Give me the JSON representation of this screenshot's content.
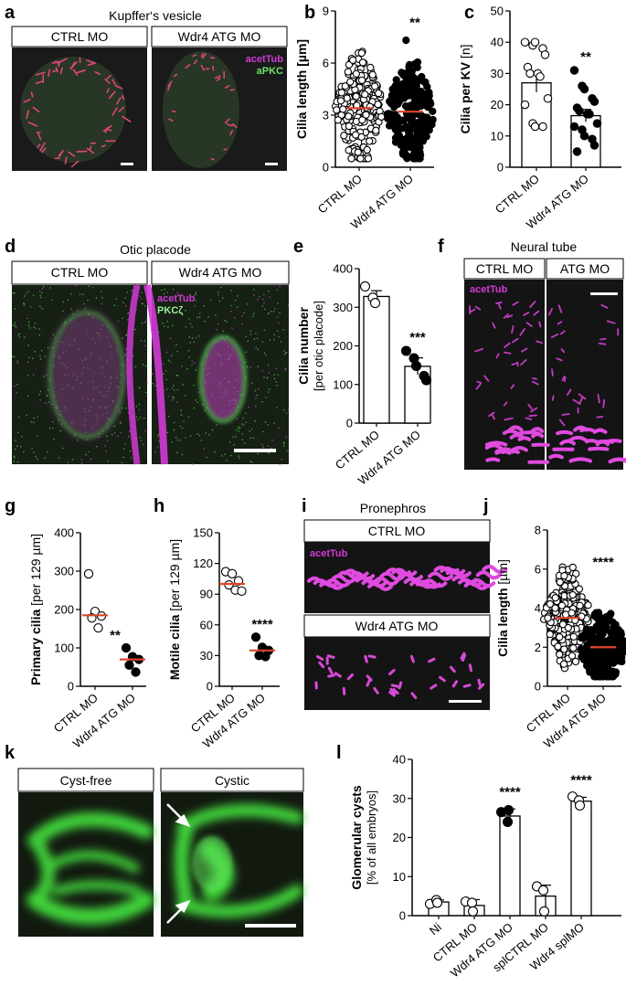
{
  "figure": {
    "panels": {
      "a": {
        "letter": "a",
        "title": "Kupffer‘s vesicle",
        "left_header": "CTRL MO",
        "right_header": "Wdr4 ATG MO",
        "stain1": "acetTub",
        "stain2": "aPKC"
      },
      "d": {
        "letter": "d",
        "title": "Otic placode",
        "left_header": "CTRL MO",
        "right_header": "Wdr4 ATG MO",
        "stain1": "acetTub",
        "stain2": "PKCζ"
      },
      "f": {
        "letter": "f",
        "title": "Neural tube",
        "left_header": "CTRL MO",
        "right_header": "ATG MO",
        "stain1": "acetTub"
      },
      "i": {
        "letter": "i",
        "title": "Pronephros",
        "top_header": "CTRL MO",
        "bottom_header": "Wdr4 ATG MO",
        "stain1": "acetTub"
      },
      "k": {
        "letter": "k",
        "left_header": "Cyst-free",
        "right_header": "Cystic"
      }
    },
    "colors": {
      "magenta": "#d23ad6",
      "green": "#3fd23a",
      "red_median": "#e0442c",
      "micrograph_bg": "#141414"
    }
  },
  "chart_data": [
    {
      "id": "b",
      "letter": "b",
      "type": "scatter",
      "ylabel": "Cilia length [µm]",
      "yunit": "",
      "ylim": [
        0,
        9
      ],
      "yticks": [
        0,
        3,
        6,
        9
      ],
      "categories": [
        "CTRL MO",
        "Wdr4 ATG MO"
      ],
      "median": [
        3.4,
        3.2
      ],
      "significance": "**",
      "series": [
        {
          "fill": [
            "open",
            "filled"
          ]
        }
      ]
    },
    {
      "id": "c",
      "letter": "c",
      "type": "bar",
      "ylabel": "Cilia per KV",
      "yunit": "[n]",
      "ylim": [
        0,
        50
      ],
      "yticks": [
        0,
        10,
        20,
        30,
        40,
        50
      ],
      "categories": [
        "CTRL MO",
        "Wdr4 ATG MO"
      ],
      "values": [
        27,
        16.5
      ],
      "error": [
        3,
        2
      ],
      "significance": "**",
      "points": [
        [
          40,
          39,
          40,
          38,
          36,
          32,
          30,
          30,
          29,
          22,
          20,
          14,
          13,
          13
        ],
        [
          31,
          26,
          25,
          22,
          21,
          19,
          18,
          17,
          17,
          14,
          13,
          12,
          10,
          9,
          7,
          5
        ]
      ]
    },
    {
      "id": "e",
      "letter": "e",
      "type": "bar",
      "ylabel": "Cilia number",
      "yunit": "[per otic placode]",
      "ylim": [
        0,
        400
      ],
      "yticks": [
        0,
        100,
        200,
        300,
        400
      ],
      "categories": [
        "CTRL MO",
        "Wdr4 ATG MO"
      ],
      "values": [
        328,
        147
      ],
      "error": [
        15,
        22
      ],
      "significance": "***",
      "points": [
        [
          354,
          325,
          311
        ],
        [
          187,
          168,
          148,
          122,
          111
        ]
      ]
    },
    {
      "id": "g",
      "letter": "g",
      "type": "scatter",
      "ylabel": "Primary cilia",
      "yunit": "[per 129 µm]",
      "ylim": [
        0,
        400
      ],
      "yticks": [
        0,
        100,
        200,
        300,
        400
      ],
      "categories": [
        "CTRL MO",
        "Wdr4 ATG MO"
      ],
      "median": [
        185,
        70
      ],
      "significance": "**",
      "points": [
        [
          293,
          195,
          183,
          178,
          152
        ],
        [
          100,
          77,
          70,
          55,
          37
        ]
      ]
    },
    {
      "id": "h",
      "letter": "h",
      "type": "scatter",
      "ylabel": "Motile cilia",
      "yunit": "[per 129 µm]",
      "ylim": [
        0,
        150
      ],
      "yticks": [
        0,
        30,
        60,
        90,
        120,
        150
      ],
      "categories": [
        "CTRL MO",
        "Wdr4 ATG MO"
      ],
      "median": [
        100,
        35
      ],
      "significance": "****",
      "points": [
        [
          112,
          110,
          103,
          99,
          94,
          93
        ],
        [
          48,
          38,
          35,
          30,
          29
        ]
      ]
    },
    {
      "id": "j",
      "letter": "j",
      "type": "scatter",
      "ylabel": "Cilia length",
      "yunit": "[µm]",
      "ylim": [
        0,
        8
      ],
      "yticks": [
        0,
        2,
        4,
        6,
        8
      ],
      "categories": [
        "CTRL MO",
        "Wdr4 ATG MO"
      ],
      "median": [
        3.5,
        2.0
      ],
      "significance": "****"
    },
    {
      "id": "l",
      "letter": "l",
      "type": "bar",
      "ylabel": "Glomerular cysts",
      "yunit": "[% of all embryos]",
      "ylim": [
        0,
        40
      ],
      "yticks": [
        0,
        10,
        20,
        30,
        40
      ],
      "categories": [
        "Ni",
        "CTRL MO",
        "Wdr4 ATG MO",
        "splCTRL MO",
        "Wdr4 splMO"
      ],
      "values": [
        3.5,
        2.6,
        25.5,
        5,
        29.3
      ],
      "error": [
        0.5,
        1.5,
        1.8,
        2.8,
        1
      ],
      "significance": [
        "",
        "",
        "****",
        "",
        "****"
      ],
      "points": [
        [
          3,
          4,
          3.3
        ],
        [
          3.6,
          3.3,
          1.1
        ],
        [
          26.5,
          24,
          27
        ],
        [
          7.5,
          6.5,
          1.1
        ],
        [
          30.5,
          29.5,
          28.2
        ]
      ],
      "filled": [
        false,
        false,
        true,
        false,
        false
      ]
    }
  ]
}
